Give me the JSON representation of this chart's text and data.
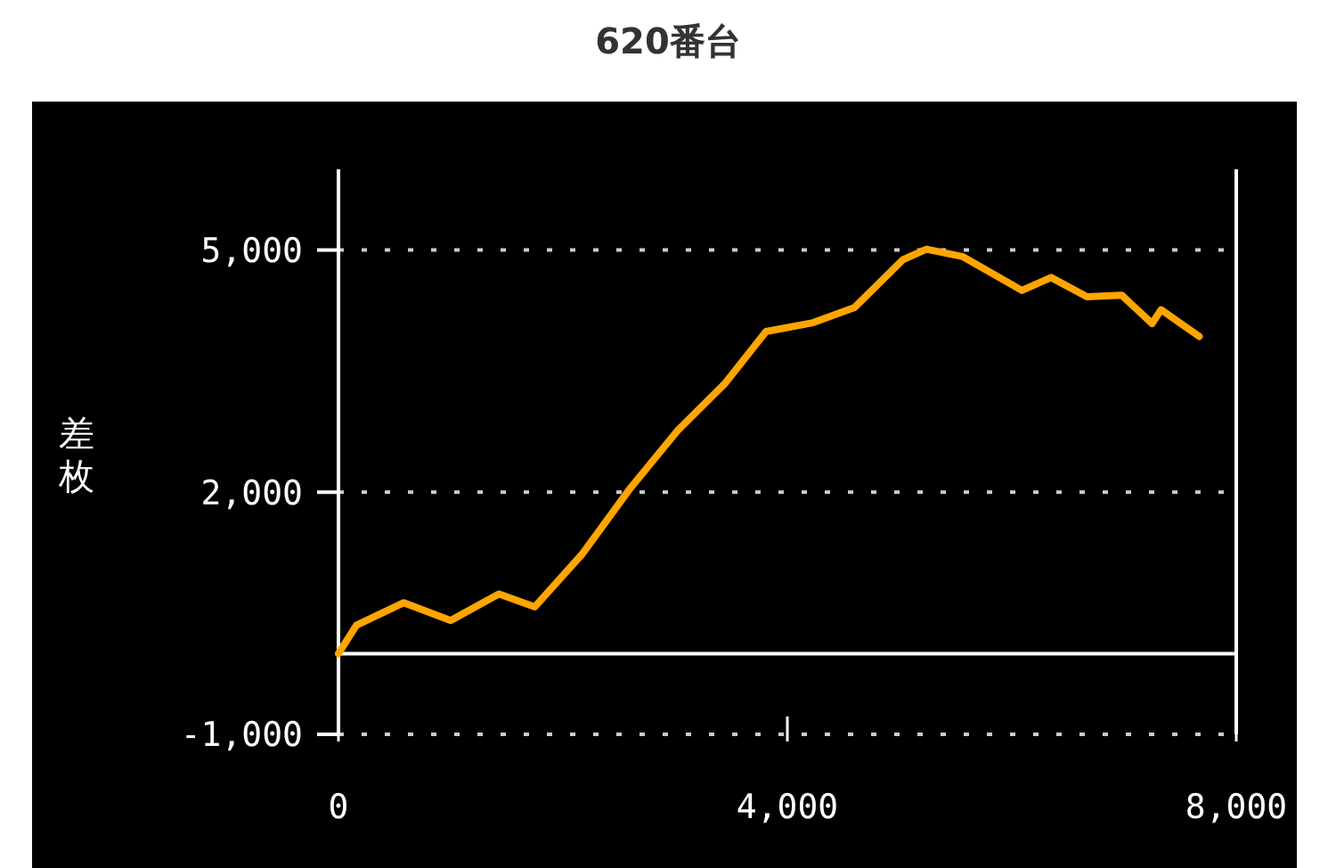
{
  "chart_data": {
    "type": "line",
    "title": "620番台",
    "ylabel": "差枚",
    "x": [
      0,
      160,
      580,
      1000,
      1430,
      1750,
      2170,
      2590,
      3020,
      3440,
      3810,
      4230,
      4600,
      5030,
      5240,
      5560,
      6090,
      6350,
      6670,
      6980,
      7250,
      7330,
      7670
    ],
    "series": [
      {
        "color": "#ffa500",
        "values": [
          0,
          350,
          630,
          410,
          740,
          580,
          1230,
          2030,
          2760,
          3340,
          3990,
          4100,
          4290,
          4880,
          5010,
          4920,
          4500,
          4660,
          4420,
          4440,
          4090,
          4260,
          3930
        ]
      }
    ],
    "xlim": [
      0,
      8000
    ],
    "xticks": [
      {
        "value": 0,
        "label": "0"
      },
      {
        "value": 4000,
        "label": "4,000"
      },
      {
        "value": 8000,
        "label": "8,000"
      }
    ],
    "ylim": [
      -1000,
      6000
    ],
    "yticks": [
      {
        "value": -1000,
        "label": "-1,000"
      },
      {
        "value": 2000,
        "label": "2,000"
      },
      {
        "value": 5000,
        "label": "5,000"
      }
    ],
    "grid": "y",
    "marker": "none",
    "line_style": "solid",
    "ref_lines": [
      {
        "axis": "y",
        "value": 0,
        "color": "#ffffff",
        "line_style": "solid"
      }
    ]
  }
}
